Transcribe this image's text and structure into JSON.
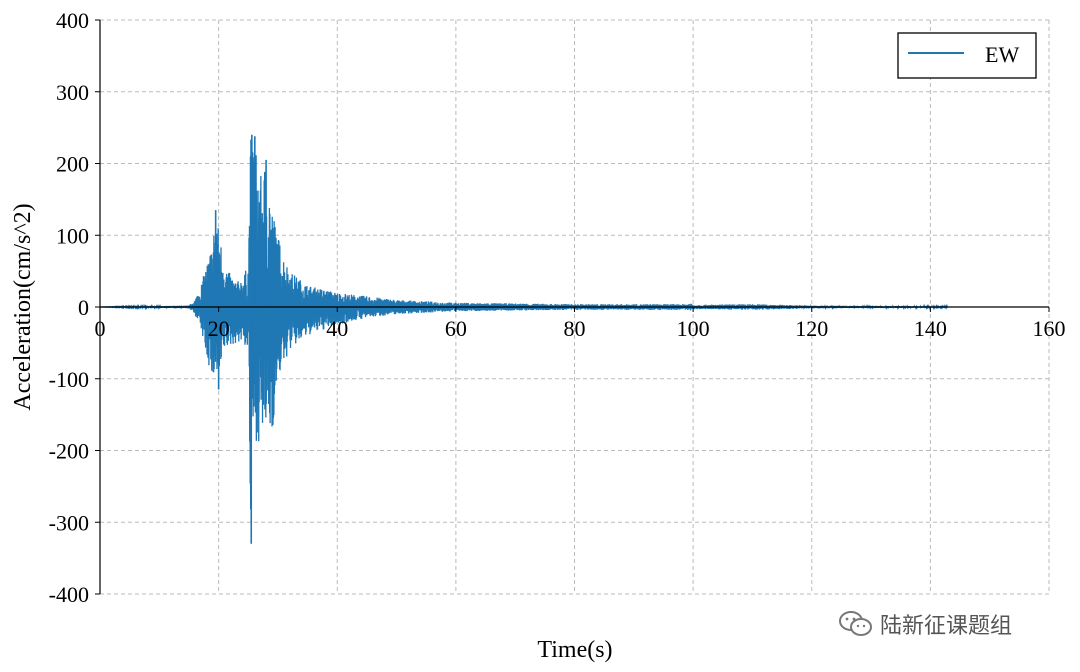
{
  "chart_data": {
    "type": "line",
    "xlabel": "Time(s)",
    "ylabel": "Acceleration(cm/s^2)",
    "xlim": [
      0,
      160
    ],
    "ylim": [
      -400,
      400
    ],
    "xticks": [
      0,
      20,
      40,
      60,
      80,
      100,
      120,
      140,
      160
    ],
    "yticks": [
      -400,
      -300,
      -200,
      -100,
      0,
      100,
      200,
      300,
      400
    ],
    "grid": true,
    "legend_position": "top-right",
    "series": [
      {
        "name": "EW",
        "color": "#1f77b4",
        "envelope": {
          "t": [
            0,
            15,
            16,
            17,
            18,
            19,
            19.5,
            20,
            21,
            22,
            23,
            24,
            25,
            25.4,
            25.6,
            26,
            27,
            28,
            29,
            30,
            31,
            32,
            35,
            40,
            45,
            50,
            60,
            80,
            99,
            99.5,
            100,
            110,
            120,
            143
          ],
          "upper": [
            0,
            2,
            10,
            30,
            60,
            90,
            135,
            110,
            60,
            45,
            35,
            40,
            60,
            240,
            240,
            240,
            180,
            205,
            140,
            100,
            70,
            50,
            30,
            20,
            15,
            10,
            6,
            4,
            4,
            6,
            3,
            4,
            2,
            1
          ],
          "lower": [
            0,
            -2,
            -10,
            -30,
            -70,
            -105,
            -90,
            -115,
            -60,
            -55,
            -50,
            -50,
            -60,
            -330,
            -190,
            -185,
            -190,
            -170,
            -180,
            -100,
            -80,
            -60,
            -40,
            -25,
            -15,
            -10,
            -6,
            -4,
            -4,
            -5,
            -3,
            -4,
            -2,
            -1
          ]
        }
      }
    ]
  },
  "watermark": {
    "icon": "wechat-icon",
    "text": "陆新征课题组"
  }
}
